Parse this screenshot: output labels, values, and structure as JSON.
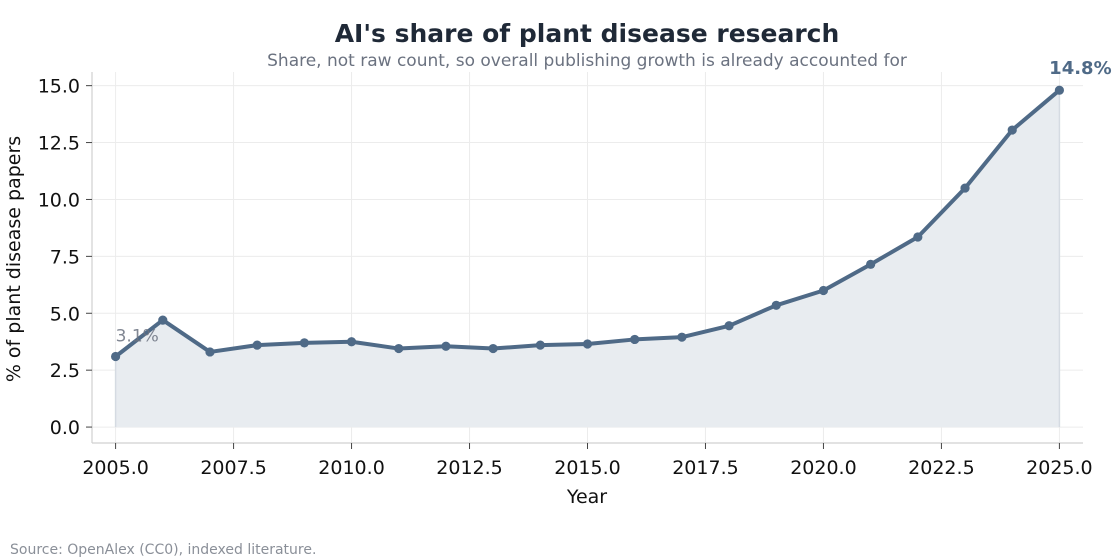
{
  "chart_data": {
    "type": "area",
    "title": "AI's share of plant disease research",
    "subtitle": "Share, not raw count, so overall publishing growth is already accounted for",
    "xlabel": "Year",
    "ylabel": "% of plant disease papers",
    "xlim": [
      2004.5,
      2025.5
    ],
    "ylim": [
      -0.7,
      15.6
    ],
    "xticks": [
      2005.0,
      2007.5,
      2010.0,
      2012.5,
      2015.0,
      2017.5,
      2020.0,
      2022.5,
      2025.0
    ],
    "xtick_labels": [
      "2005.0",
      "2007.5",
      "2010.0",
      "2012.5",
      "2015.0",
      "2017.5",
      "2020.0",
      "2022.5",
      "2025.0"
    ],
    "yticks": [
      0.0,
      2.5,
      5.0,
      7.5,
      10.0,
      12.5,
      15.0
    ],
    "ytick_labels": [
      "0.0",
      "2.5",
      "5.0",
      "7.5",
      "10.0",
      "12.5",
      "15.0"
    ],
    "grid": true,
    "color": "#4f6a87",
    "fill_color": "#e8ecf0",
    "x": [
      2005,
      2006,
      2007,
      2008,
      2009,
      2010,
      2011,
      2012,
      2013,
      2014,
      2015,
      2016,
      2017,
      2018,
      2019,
      2020,
      2021,
      2022,
      2023,
      2024,
      2025
    ],
    "y": [
      3.1,
      4.7,
      3.3,
      3.6,
      3.7,
      3.75,
      3.45,
      3.55,
      3.45,
      3.6,
      3.65,
      3.85,
      3.95,
      4.45,
      5.35,
      6.0,
      7.15,
      8.35,
      10.5,
      13.05,
      14.8
    ],
    "annotations": [
      {
        "label": "3.1%",
        "x": 2005,
        "y": 3.1,
        "style": "start"
      },
      {
        "label": "14.8%",
        "x": 2025,
        "y": 14.8,
        "style": "end"
      }
    ],
    "source": "Source: OpenAlex (CC0), indexed literature."
  }
}
